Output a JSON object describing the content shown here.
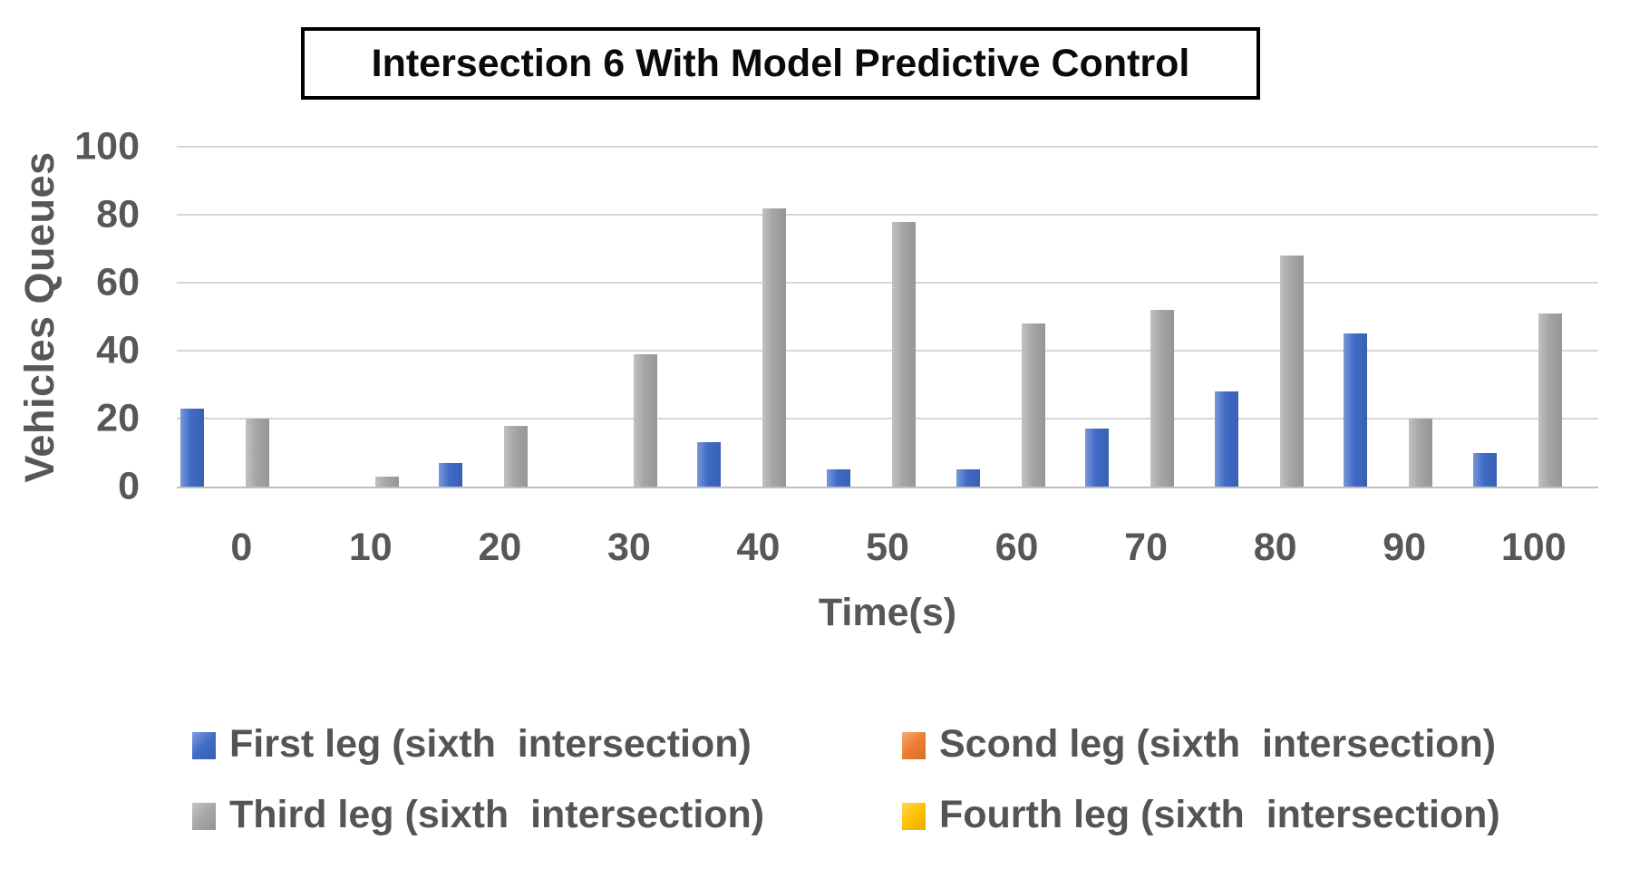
{
  "title": "Intersection 6 With Model Predictive Control",
  "y_axis": {
    "label": "Vehicles Queues",
    "ticks": [
      "0",
      "20",
      "40",
      "60",
      "80",
      "100"
    ]
  },
  "x_axis": {
    "label": "Time(s)"
  },
  "chart_data": {
    "type": "bar",
    "title": "Intersection 6 With Model Predictive Control",
    "xlabel": "Time(s)",
    "ylabel": "Vehicles Queues",
    "categories": [
      "0",
      "10",
      "20",
      "30",
      "40",
      "50",
      "60",
      "70",
      "80",
      "90",
      "100"
    ],
    "series": [
      {
        "id": "first-leg",
        "name": "First leg (sixth  intersection)",
        "color": "#3F6BC6",
        "values": [
          23,
          0,
          7,
          0,
          13,
          5,
          5,
          17,
          28,
          45,
          10
        ]
      },
      {
        "id": "scond-leg",
        "name": "Scond leg (sixth  intersection)",
        "color": "#ED7D31",
        "values": [
          0,
          0,
          0,
          0,
          0,
          0,
          0,
          0,
          0,
          0,
          0
        ]
      },
      {
        "id": "third-leg",
        "name": "Third leg (sixth  intersection)",
        "color": "#A6A6A6",
        "values": [
          20,
          3,
          18,
          39,
          82,
          78,
          48,
          52,
          68,
          20,
          51
        ]
      },
      {
        "id": "fourth-leg",
        "name": "Fourth leg (sixth  intersection)",
        "color": "#FFC000",
        "values": [
          0,
          0,
          0,
          0,
          0,
          0,
          0,
          0,
          0,
          0,
          0
        ]
      }
    ],
    "ylim": [
      0,
      100
    ],
    "ytick_step": 20,
    "grid": true,
    "legend_position": "bottom"
  },
  "legend": {
    "items": [
      {
        "id": "first-leg",
        "label": "First leg (sixth  intersection)",
        "color": "#3F6BC6"
      },
      {
        "id": "scond-leg",
        "label": "Scond leg (sixth  intersection)",
        "color": "#ED7D31"
      },
      {
        "id": "third-leg",
        "label": "Third leg (sixth  intersection)",
        "color": "#A6A6A6"
      },
      {
        "id": "fourth-leg",
        "label": "Fourth leg (sixth  intersection)",
        "color": "#FFC000"
      }
    ]
  }
}
